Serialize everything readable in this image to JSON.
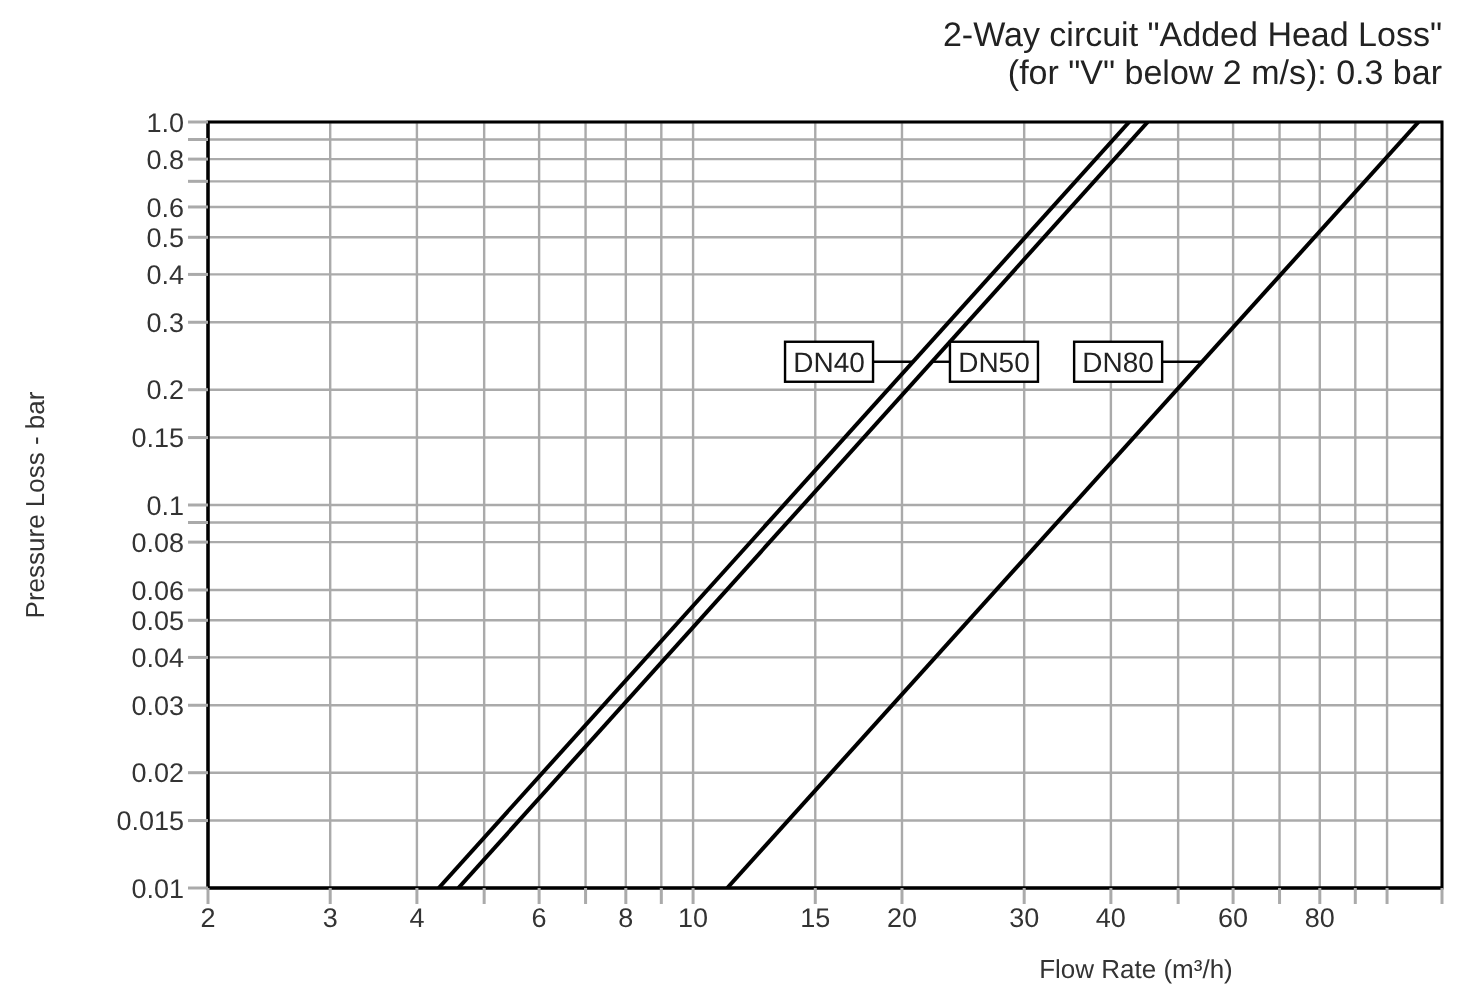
{
  "chart_data": {
    "type": "line",
    "title": "2-Way circuit \"Added Head Loss\"",
    "subtitle": "(for \"V\" below 2 m/s): 0.3 bar",
    "xlabel": "Flow Rate (m³/h)",
    "ylabel": "Pressure Loss - bar",
    "log": "xy",
    "grid": true,
    "legend": "center",
    "marker": "none",
    "line_style": "solid",
    "xlim": [
      2,
      120
    ],
    "ylim": [
      0.01,
      1
    ],
    "xticks": [
      2,
      3,
      4,
      {
        "value": 5,
        "label": null
      },
      6,
      {
        "value": 7,
        "label": null
      },
      8,
      {
        "value": 9,
        "label": null
      },
      10,
      15,
      20,
      30,
      40,
      {
        "value": 50,
        "label": null
      },
      60,
      {
        "value": 70,
        "label": null
      },
      80,
      {
        "value": 90,
        "label": null
      },
      {
        "value": 100,
        "label": null
      },
      {
        "value": 120,
        "label": null
      }
    ],
    "yticks": [
      0.01,
      0.015,
      0.02,
      0.03,
      0.04,
      0.05,
      0.06,
      0.08,
      {
        "value": 0.09,
        "label": null
      },
      0.1,
      0.15,
      0.2,
      0.3,
      0.4,
      0.5,
      0.6,
      {
        "value": 0.7,
        "label": null
      },
      0.8,
      {
        "value": 0.9,
        "label": null
      },
      {
        "value": 1,
        "label": "1.0"
      }
    ],
    "series": [
      {
        "name": "DN40",
        "color": "#000000",
        "x": [
          4.3,
          42.5
        ],
        "values": [
          0.01,
          1
        ]
      },
      {
        "name": "DN50",
        "color": "#000000",
        "x": [
          4.59,
          45.2
        ],
        "values": [
          0.01,
          1
        ]
      },
      {
        "name": "DN80",
        "color": "#000000",
        "x": [
          11.2,
          111
        ],
        "values": [
          0.01,
          1
        ]
      }
    ]
  }
}
